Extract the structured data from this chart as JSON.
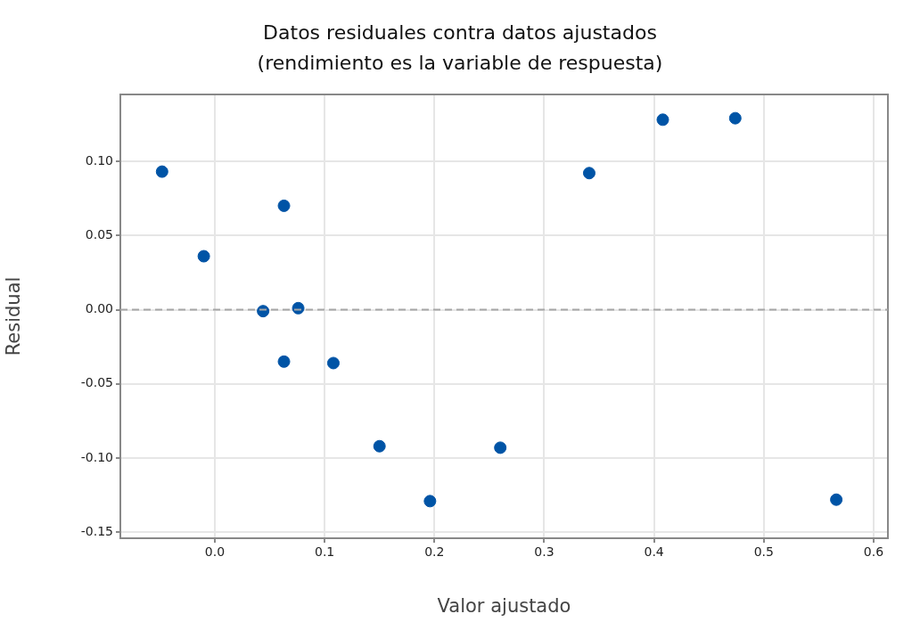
{
  "chart_data": {
    "type": "scatter",
    "title": "Datos residuales contra datos ajustados (rendimiento es la variable de respuesta)",
    "xlabel": "Valor ajustado",
    "ylabel": "Residual",
    "series": [
      {
        "color": "#0054a6",
        "x": [
          -0.048,
          -0.01,
          0.063,
          0.044,
          0.076,
          0.063,
          0.108,
          0.15,
          0.196,
          0.26,
          0.341,
          0.408,
          0.474,
          0.566
        ],
        "values": [
          0.093,
          0.036,
          0.07,
          -0.001,
          0.001,
          -0.035,
          -0.036,
          -0.092,
          -0.129,
          -0.093,
          0.092,
          0.128,
          0.129,
          -0.128
        ]
      }
    ],
    "xlim": [
      -0.086,
      0.613
    ],
    "ylim": [
      -0.154,
      0.145
    ],
    "xticks": [
      {
        "value": 0,
        "label": "0.0"
      },
      {
        "value": 0.1,
        "label": "0.1"
      },
      {
        "value": 0.2,
        "label": "0.2"
      },
      {
        "value": 0.3,
        "label": "0.3"
      },
      {
        "value": 0.4,
        "label": "0.4"
      },
      {
        "value": 0.5,
        "label": "0.5"
      },
      {
        "value": 0.6,
        "label": "0.6"
      }
    ],
    "yticks": [
      {
        "value": -0.15,
        "label": "-0.15"
      },
      {
        "value": -0.1,
        "label": "-0.10"
      },
      {
        "value": -0.05,
        "label": "-0.05"
      },
      {
        "value": 0,
        "label": "0.00"
      },
      {
        "value": 0.05,
        "label": "0.05"
      },
      {
        "value": 0.1,
        "label": "0.10"
      }
    ],
    "ref_lines": [
      {
        "axis": "y",
        "value": 0,
        "color": "#a6a6a6",
        "line_style": "dashed"
      }
    ],
    "grid": true,
    "legend": false,
    "marker": "circle"
  }
}
